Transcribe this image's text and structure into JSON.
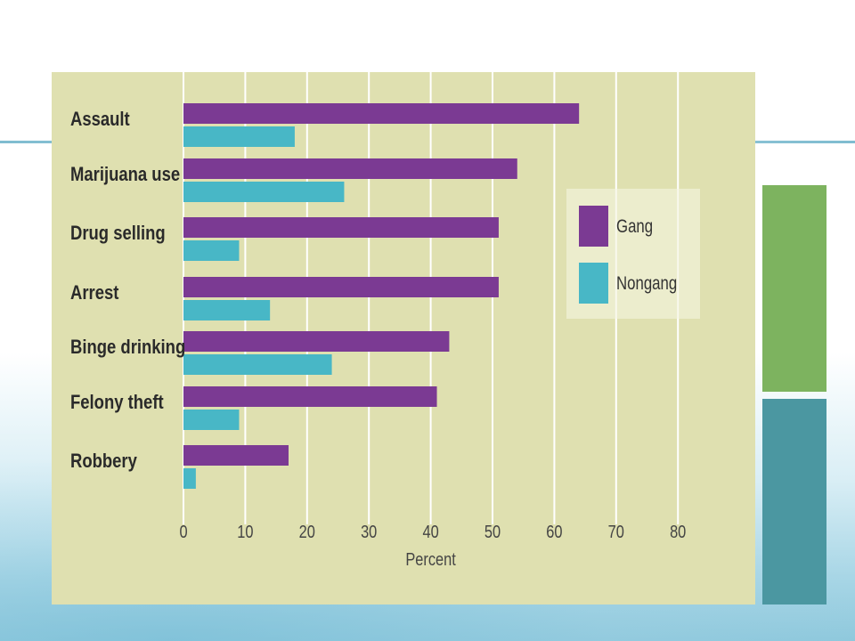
{
  "colors": {
    "gang": "#7b3a93",
    "nongang": "#48b7c6",
    "panel": "#dfe0b0",
    "grid": "#ffffff",
    "deco_green": "#7db35f",
    "deco_teal": "#4b97a1"
  },
  "legend": {
    "gang_label": "Gang",
    "nongang_label": "Nongang"
  },
  "chart_data": {
    "type": "bar",
    "orientation": "horizontal",
    "categories": [
      "Assault",
      "Marijuana use",
      "Drug selling",
      "Arrest",
      "Binge drinking",
      "Felony theft",
      "Robbery"
    ],
    "series": [
      {
        "name": "Gang",
        "values": [
          64,
          54,
          51,
          51,
          43,
          41,
          17
        ]
      },
      {
        "name": "Nongang",
        "values": [
          18,
          26,
          9,
          14,
          24,
          9,
          2
        ]
      }
    ],
    "xlabel": "Percent",
    "ylabel": "",
    "xlim": [
      0,
      80
    ],
    "xticks": [
      0,
      10,
      20,
      30,
      40,
      50,
      60,
      70,
      80
    ],
    "grid": true,
    "legend_position": "right"
  }
}
